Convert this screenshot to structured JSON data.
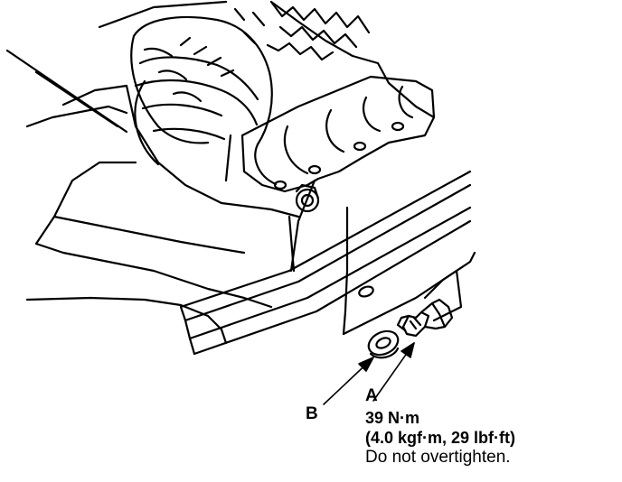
{
  "callouts": {
    "b": "B",
    "a": "A"
  },
  "spec": {
    "torque_metric": "39 N·m",
    "torque_imperial": "(4.0 kgf·m, 29 lbf·ft)",
    "note": "Do not overtighten."
  },
  "parts": {
    "b": "sealing-washer",
    "a": "drain-bolt"
  },
  "colors": {
    "ink": "#000000",
    "paper": "#ffffff"
  }
}
